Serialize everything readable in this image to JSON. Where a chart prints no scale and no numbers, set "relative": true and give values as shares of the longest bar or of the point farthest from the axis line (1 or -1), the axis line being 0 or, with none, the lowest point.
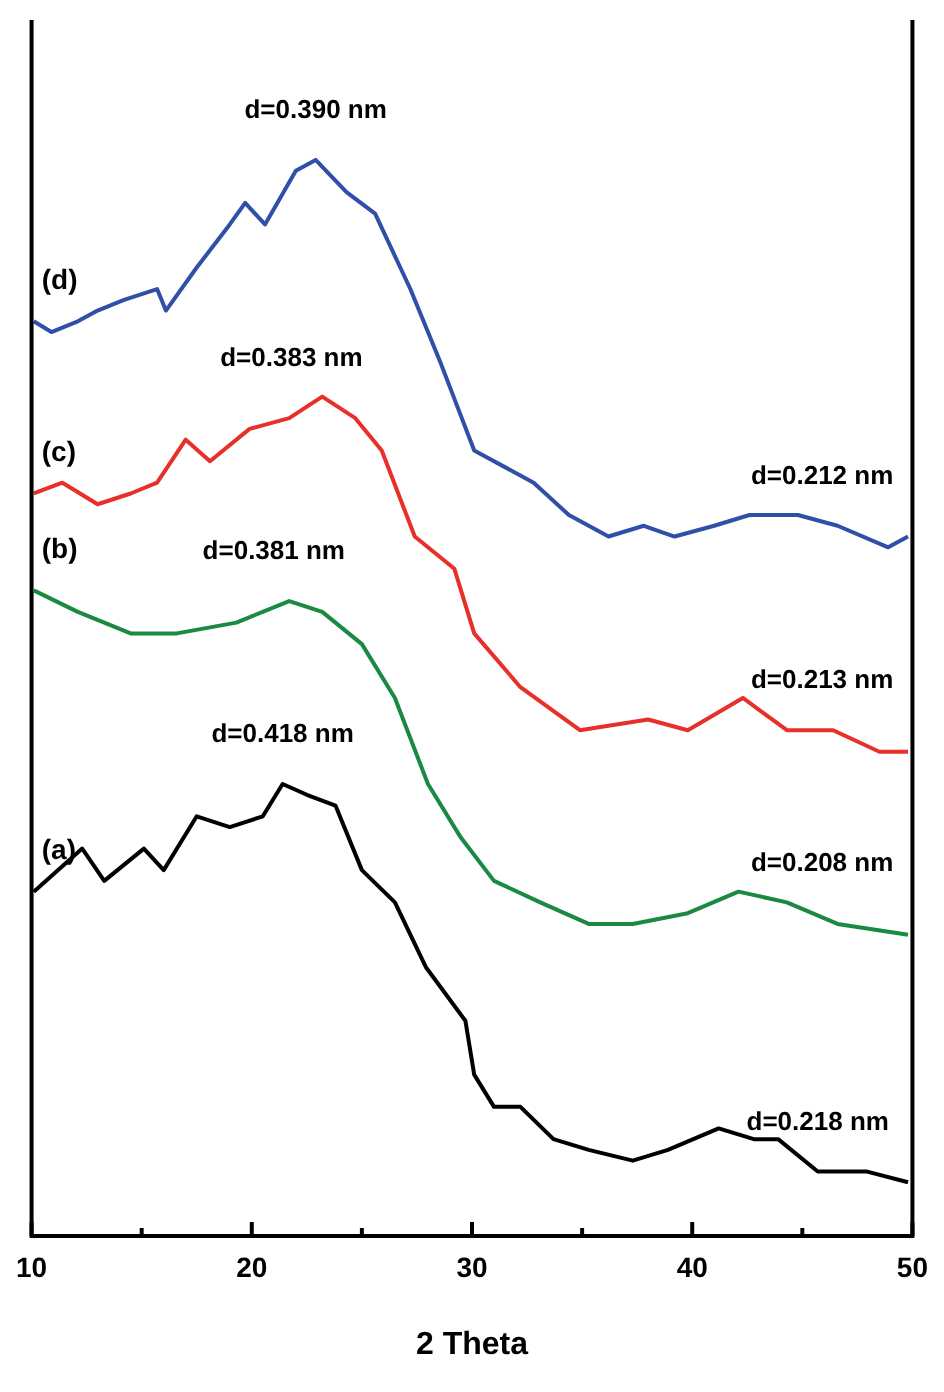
{
  "chart_data": {
    "type": "line",
    "relative": true,
    "xlabel": "2 Theta",
    "xlim": [
      10,
      50
    ],
    "xticks": [
      10,
      {
        "value": 15,
        "label": null
      },
      20,
      {
        "value": 25,
        "label": null
      },
      30,
      {
        "value": 35,
        "label": null
      },
      40,
      {
        "value": 45,
        "label": null
      },
      50
    ],
    "legend": false,
    "grid": false,
    "marker": "none",
    "line_style": "solid",
    "series": [
      {
        "name": "(a)",
        "color": "#000000",
        "x": [
          10.1,
          12.3,
          13.3,
          15.1,
          16.0,
          17.5,
          19.0,
          20.5,
          21.4,
          22.5,
          23.8,
          25.0,
          26.5,
          27.9,
          29.7,
          30.1,
          31.0,
          32.2,
          33.7,
          35.3,
          37.3,
          38.9,
          41.2,
          42.8,
          43.9,
          45.7,
          47.9,
          49.8
        ],
        "values": [
          0.32,
          0.36,
          0.33,
          0.36,
          0.34,
          0.39,
          0.38,
          0.39,
          0.42,
          0.41,
          0.4,
          0.34,
          0.31,
          0.25,
          0.2,
          0.15,
          0.12,
          0.12,
          0.09,
          0.08,
          0.07,
          0.08,
          0.1,
          0.09,
          0.09,
          0.06,
          0.06,
          0.05
        ]
      },
      {
        "name": "(b)",
        "color": "#1a8a42",
        "x": [
          10.1,
          12.1,
          14.5,
          16.6,
          19.3,
          21.7,
          23.2,
          24.4,
          25.0,
          26.5,
          28.0,
          29.5,
          31.0,
          33.1,
          35.3,
          37.3,
          39.8,
          42.1,
          44.3,
          46.6,
          49.8
        ],
        "values": [
          0.6,
          0.58,
          0.56,
          0.56,
          0.57,
          0.59,
          0.58,
          0.56,
          0.55,
          0.5,
          0.42,
          0.37,
          0.33,
          0.31,
          0.29,
          0.29,
          0.3,
          0.32,
          0.31,
          0.29,
          0.28
        ]
      },
      {
        "name": "(c)",
        "color": "#e8302a",
        "x": [
          10.1,
          11.4,
          13.0,
          14.5,
          15.7,
          17.0,
          18.1,
          19.9,
          21.7,
          23.2,
          24.7,
          25.9,
          27.4,
          29.2,
          30.1,
          32.2,
          34.9,
          38.0,
          39.8,
          42.3,
          44.3,
          46.4,
          48.5,
          49.8
        ],
        "values": [
          0.69,
          0.7,
          0.68,
          0.69,
          0.7,
          0.74,
          0.72,
          0.75,
          0.76,
          0.78,
          0.76,
          0.73,
          0.65,
          0.62,
          0.56,
          0.51,
          0.47,
          0.48,
          0.47,
          0.5,
          0.47,
          0.47,
          0.45,
          0.45
        ]
      },
      {
        "name": "(d)",
        "color": "#2f4fa8",
        "x": [
          10.1,
          10.9,
          12.1,
          13.0,
          14.2,
          15.7,
          16.1,
          17.5,
          19.0,
          19.7,
          20.6,
          22.0,
          22.9,
          24.3,
          25.6,
          27.2,
          28.6,
          30.1,
          32.8,
          34.4,
          36.2,
          37.8,
          39.2,
          41.0,
          42.6,
          44.8,
          46.6,
          48.9,
          49.8
        ],
        "values": [
          0.85,
          0.84,
          0.85,
          0.86,
          0.87,
          0.88,
          0.86,
          0.9,
          0.94,
          0.96,
          0.94,
          0.99,
          1.0,
          0.97,
          0.95,
          0.88,
          0.81,
          0.73,
          0.7,
          0.67,
          0.65,
          0.66,
          0.65,
          0.66,
          0.67,
          0.67,
          0.66,
          0.64,
          0.65
        ]
      }
    ],
    "annotations": [
      {
        "text": "d=0.390 nm",
        "x": 22.9,
        "y": 1.0
      },
      {
        "text": "d=0.383 nm",
        "x": 21.8,
        "y": 0.77
      },
      {
        "text": "d=0.381 nm",
        "x": 21.0,
        "y": 0.59
      },
      {
        "text": "d=0.418 nm",
        "x": 21.4,
        "y": 0.42
      },
      {
        "text": "d=0.212 nm",
        "x": 45.9,
        "y": 0.66
      },
      {
        "text": "d=0.213 nm",
        "x": 45.9,
        "y": 0.47
      },
      {
        "text": "d=0.208 nm",
        "x": 45.9,
        "y": 0.3
      },
      {
        "text": "d=0.218 nm",
        "x": 45.7,
        "y": 0.06
      }
    ]
  }
}
